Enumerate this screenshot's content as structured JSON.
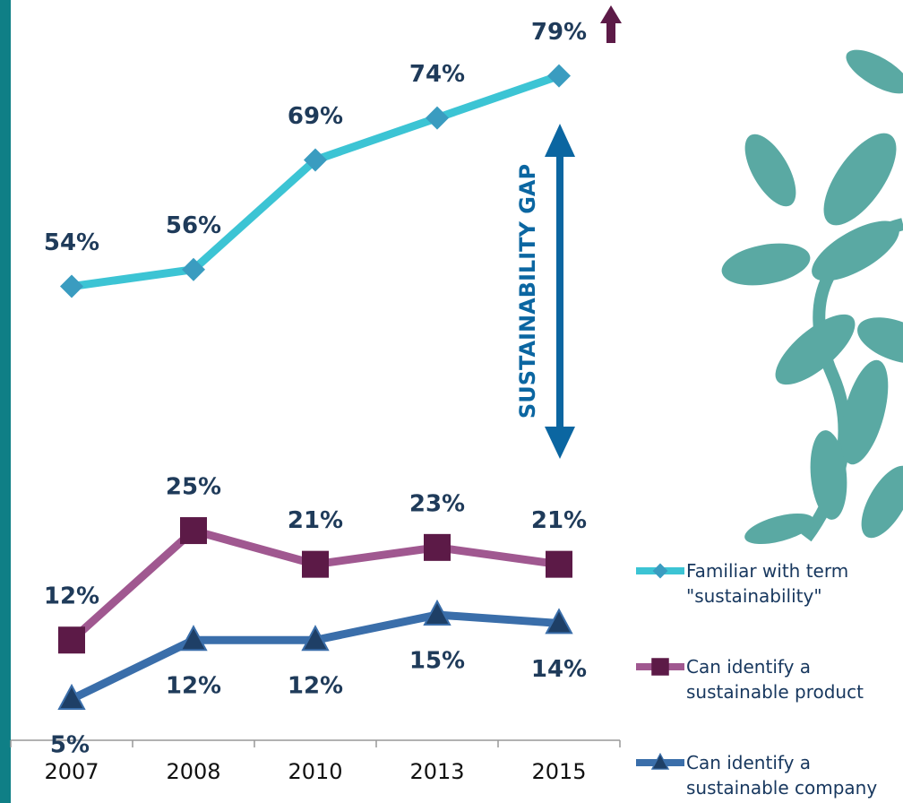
{
  "chart_data": {
    "type": "line",
    "annotation": "SUSTAINABILITY GAP",
    "categories": [
      "2007",
      "2008",
      "2010",
      "2013",
      "2015"
    ],
    "series": [
      {
        "name": "Familiar with term \"sustainability\"",
        "color": "#3cc4d4",
        "marker_color": "#3a9cc0",
        "marker": "diamond",
        "values": [
          54,
          56,
          69,
          74,
          79
        ],
        "value_labels": [
          "54%",
          "56%",
          "69%",
          "74%",
          "79%"
        ],
        "label_position": "above"
      },
      {
        "name": "Can identify a sustainable product",
        "color": "#a05890",
        "marker_color": "#5c1a47",
        "marker": "square",
        "values": [
          12,
          25,
          21,
          23,
          21
        ],
        "value_labels": [
          "12%",
          "25%",
          "21%",
          "23%",
          "21%"
        ],
        "label_position": "above"
      },
      {
        "name": "Can identify a sustainable company",
        "color": "#3a6eaa",
        "marker_color": "#1e3f66",
        "marker": "triangle",
        "values": [
          5,
          12,
          12,
          15,
          14
        ],
        "value_labels": [
          "5%",
          "12%",
          "12%",
          "15%",
          "14%"
        ],
        "label_position": "below"
      }
    ],
    "ylim": [
      0,
      88
    ]
  }
}
